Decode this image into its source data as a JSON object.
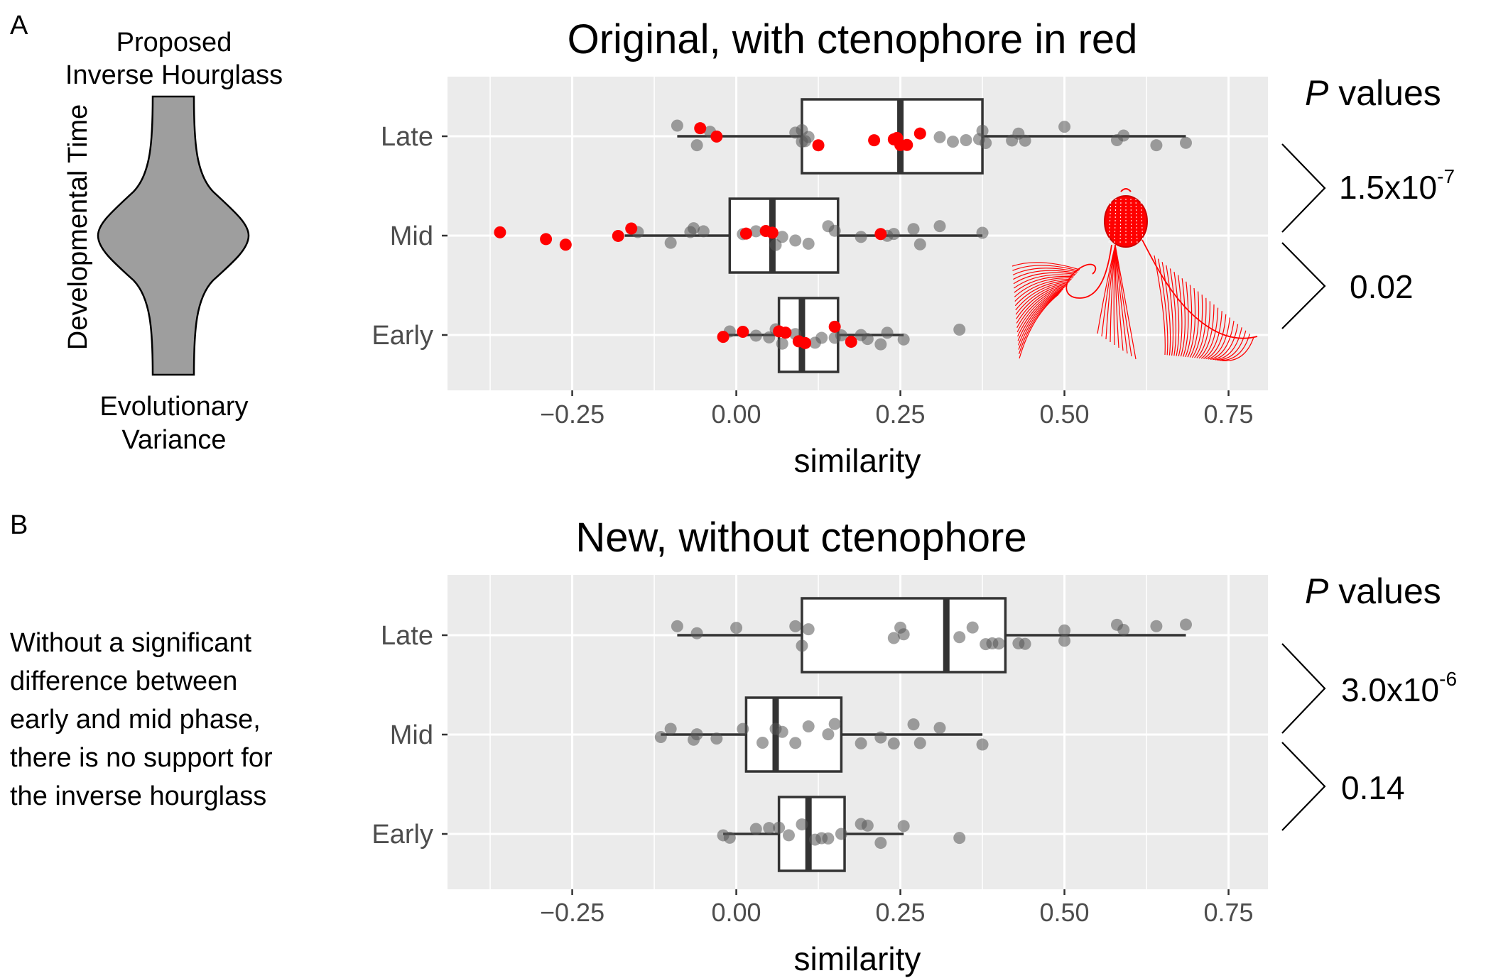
{
  "panels": {
    "a": {
      "letter": "A",
      "hourglass_title_line1": "Proposed",
      "hourglass_title_line2": "Inverse Hourglass",
      "hourglass_y_label": "Developmental Time",
      "hourglass_x_label_line1": "Evolutionary",
      "hourglass_x_label_line2": "Variance",
      "pvalues_header_italic": "P",
      "pvalues_header_rest": " values",
      "pvalue_late_mid_base": "1.5x10",
      "pvalue_late_mid_exp": "-7",
      "pvalue_mid_early": "0.02"
    },
    "b": {
      "letter": "B",
      "note_lines": [
        "Without a significant",
        "difference between",
        "early and mid phase,",
        "there is no support for",
        "the inverse hourglass"
      ],
      "pvalues_header_italic": "P",
      "pvalues_header_rest": " values",
      "pvalue_late_mid_base": "3.0x10",
      "pvalue_late_mid_exp": "-6",
      "pvalue_mid_early": "0.14"
    }
  },
  "colors": {
    "panel_bg": "#ebebeb",
    "grid": "#ffffff",
    "point_gray": "#555555",
    "point_red": "#ff0000",
    "box_stroke": "#333333"
  },
  "chart_data": [
    {
      "type": "box+jitter",
      "title": "Original, with ctenophore in red",
      "xlabel": "similarity",
      "ylabel": "",
      "xlim": [
        -0.44,
        0.81
      ],
      "x_ticks": [
        -0.25,
        0.0,
        0.25,
        0.5,
        0.75
      ],
      "x_tick_labels": [
        "−0.25",
        "0.00",
        "0.25",
        "0.50",
        "0.75"
      ],
      "categories": [
        "Late",
        "Mid",
        "Early"
      ],
      "grid": true,
      "boxes": [
        {
          "category": "Late",
          "whisker_low": -0.09,
          "q1": 0.1,
          "median": 0.25,
          "q3": 0.375,
          "whisker_high": 0.685
        },
        {
          "category": "Mid",
          "whisker_low": -0.17,
          "q1": -0.01,
          "median": 0.055,
          "q3": 0.155,
          "whisker_high": 0.375
        },
        {
          "category": "Early",
          "whisker_low": -0.02,
          "q1": 0.065,
          "median": 0.1,
          "q3": 0.155,
          "whisker_high": 0.255
        }
      ],
      "points": [
        {
          "category": "Late",
          "gray": [
            -0.09,
            -0.06,
            -0.04,
            0.1,
            0.105,
            0.11,
            0.09,
            0.1,
            0.33,
            0.31,
            0.35,
            0.37,
            0.38,
            0.375,
            0.43,
            0.44,
            0.42,
            0.5,
            0.58,
            0.59,
            0.64,
            0.685
          ],
          "red": [
            -0.055,
            -0.03,
            0.125,
            0.21,
            0.24,
            0.245,
            0.25,
            0.26,
            0.28
          ]
        },
        {
          "category": "Mid",
          "gray": [
            -0.15,
            -0.1,
            -0.07,
            -0.065,
            -0.05,
            0.01,
            0.03,
            0.06,
            0.07,
            0.09,
            0.11,
            0.14,
            0.15,
            0.19,
            0.23,
            0.24,
            0.27,
            0.28,
            0.31,
            0.375
          ],
          "red": [
            -0.36,
            -0.29,
            -0.26,
            -0.18,
            -0.16,
            0.015,
            0.045,
            0.055,
            0.22
          ]
        },
        {
          "category": "Early",
          "gray": [
            -0.01,
            0.03,
            0.05,
            0.06,
            0.07,
            0.09,
            0.12,
            0.13,
            0.15,
            0.16,
            0.19,
            0.2,
            0.22,
            0.23,
            0.255,
            0.34
          ],
          "red": [
            -0.02,
            0.01,
            0.065,
            0.075,
            0.095,
            0.105,
            0.15,
            0.175
          ]
        }
      ]
    },
    {
      "type": "box+jitter",
      "title": "New, without ctenophore",
      "xlabel": "similarity",
      "ylabel": "",
      "xlim": [
        -0.44,
        0.81
      ],
      "x_ticks": [
        -0.25,
        0.0,
        0.25,
        0.5,
        0.75
      ],
      "x_tick_labels": [
        "−0.25",
        "0.00",
        "0.25",
        "0.50",
        "0.75"
      ],
      "categories": [
        "Late",
        "Mid",
        "Early"
      ],
      "grid": true,
      "boxes": [
        {
          "category": "Late",
          "whisker_low": -0.09,
          "q1": 0.1,
          "median": 0.32,
          "q3": 0.41,
          "whisker_high": 0.685
        },
        {
          "category": "Mid",
          "whisker_low": -0.115,
          "q1": 0.015,
          "median": 0.06,
          "q3": 0.16,
          "whisker_high": 0.375
        },
        {
          "category": "Early",
          "whisker_low": -0.02,
          "q1": 0.065,
          "median": 0.11,
          "q3": 0.165,
          "whisker_high": 0.255
        }
      ],
      "points": [
        {
          "category": "Late",
          "gray": [
            -0.09,
            -0.06,
            0.0,
            0.09,
            0.1,
            0.11,
            0.24,
            0.25,
            0.255,
            0.34,
            0.36,
            0.38,
            0.39,
            0.4,
            0.43,
            0.44,
            0.5,
            0.5,
            0.58,
            0.59,
            0.64,
            0.685
          ],
          "red": []
        },
        {
          "category": "Mid",
          "gray": [
            -0.115,
            -0.1,
            -0.065,
            -0.06,
            -0.03,
            0.01,
            0.04,
            0.06,
            0.07,
            0.09,
            0.11,
            0.14,
            0.15,
            0.19,
            0.22,
            0.24,
            0.27,
            0.28,
            0.31,
            0.375
          ],
          "red": []
        },
        {
          "category": "Early",
          "gray": [
            -0.02,
            -0.01,
            0.03,
            0.05,
            0.065,
            0.08,
            0.1,
            0.12,
            0.13,
            0.14,
            0.16,
            0.19,
            0.2,
            0.22,
            0.255,
            0.34
          ],
          "red": []
        }
      ]
    }
  ]
}
